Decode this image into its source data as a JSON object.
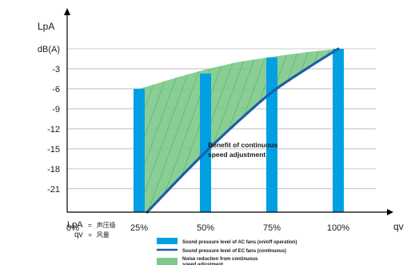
{
  "chart_data": {
    "type": "bar",
    "xlabel": "qv",
    "ylabel": "LpA",
    "yunit": "dB(A)",
    "x_categories": [
      "0%",
      "25%",
      "50%",
      "75%",
      "100%"
    ],
    "y_ticks": [
      0,
      -3,
      -6,
      -9,
      -12,
      -15,
      -18,
      -21
    ],
    "y_tick_labels": [
      "dB(A)",
      "-3",
      "-6",
      "-9",
      "-12",
      "-15",
      "-18",
      "-21"
    ],
    "ylim": [
      -24.5,
      0
    ],
    "xlim": [
      0,
      100
    ],
    "series": [
      {
        "name": "Sound pressure level of AC fans (on/off operation)",
        "type": "bar",
        "color": "#00a0e3",
        "x": [
          25,
          50,
          75,
          100
        ],
        "values": [
          -6,
          -3.7,
          -1.3,
          0
        ]
      },
      {
        "name": "Sound pressure level of EC fans (continuous)",
        "type": "line",
        "color": "#1b5fa8",
        "x": [
          28,
          40,
          50,
          62,
          75,
          88,
          100
        ],
        "values": [
          -24.5,
          -19.5,
          -15.5,
          -11,
          -6.5,
          -3,
          0
        ]
      },
      {
        "name": "Noise reduction from continuous speed adjustment",
        "type": "area",
        "color": "#7cc98a",
        "upper_x": [
          25,
          40,
          50,
          62,
          75,
          88,
          100
        ],
        "upper_values": [
          -6,
          -4.2,
          -3.1,
          -2,
          -1.2,
          -0.5,
          0
        ]
      }
    ],
    "annotation": [
      "Benefit of continuous",
      "speed adjustment"
    ],
    "symbol_legend": [
      {
        "symbol": "LpA",
        "separator": "=",
        "meaning": "声压级"
      },
      {
        "symbol": "qv",
        "separator": "=",
        "meaning": "风量"
      }
    ],
    "colors": {
      "bar": "#00a0e3",
      "line": "#1b5fa8",
      "area": "#7cc98a",
      "hatch": "#2f8a3f",
      "grid": "#9a9a9a"
    }
  }
}
